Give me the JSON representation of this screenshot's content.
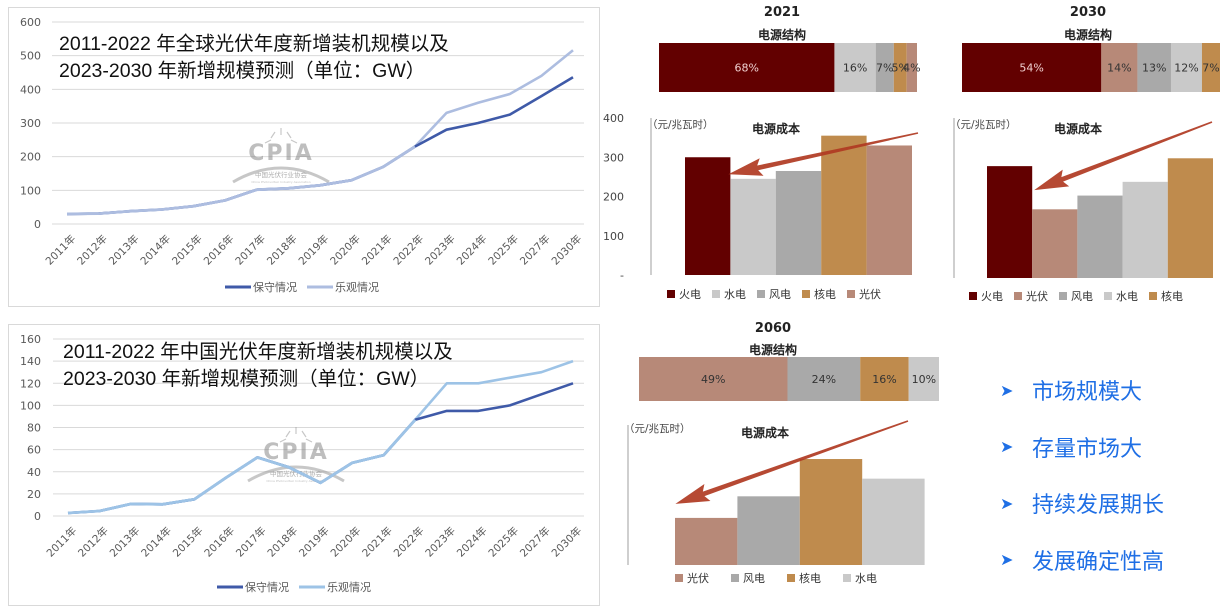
{
  "chart_data": [
    {
      "id": "global",
      "type": "line",
      "title": "2011-2022 年全球光伏年度新增装机规模以及\n2023-2030 年新增规模预测（单位：GW）",
      "title_lines": [
        "2011-2022 年全球光伏年度新增装机规模以及",
        "2023-2030 年新增规模预测（单位：GW）"
      ],
      "xlabel": "",
      "ylabel": "",
      "categories": [
        "2011年",
        "2012年",
        "2013年",
        "2014年",
        "2015年",
        "2016年",
        "2017年",
        "2018年",
        "2019年",
        "2020年",
        "2021年",
        "2022年",
        "2023年",
        "2024年",
        "2025年",
        "2027年",
        "2030年"
      ],
      "ylim": [
        0,
        600
      ],
      "yticks": [
        0,
        100,
        200,
        300,
        400,
        500,
        600
      ],
      "grid": true,
      "legend_position": "bottom",
      "series": [
        {
          "name": "保守情况",
          "color": "#3f5aa8",
          "values": [
            30,
            31,
            38,
            43,
            53,
            70,
            102,
            106,
            115,
            130,
            170,
            230,
            280,
            300,
            325,
            380,
            436
          ]
        },
        {
          "name": "乐观情况",
          "color": "#adbde0",
          "values": [
            30,
            31,
            38,
            43,
            53,
            70,
            102,
            106,
            115,
            130,
            170,
            230,
            330,
            360,
            386,
            440,
            516
          ]
        }
      ],
      "watermark": {
        "logo": "CPIA",
        "cn": "中国光伏行业协会",
        "en": "China Photovoltaic Industry Association"
      }
    },
    {
      "id": "china",
      "type": "line",
      "title_lines": [
        "2011-2022 年中国光伏年度新增装机规模以及",
        "2023-2030 年新增规模预测（单位：GW）"
      ],
      "xlabel": "",
      "ylabel": "",
      "categories": [
        "2011年",
        "2012年",
        "2013年",
        "2014年",
        "2015年",
        "2016年",
        "2017年",
        "2018年",
        "2019年",
        "2020年",
        "2021年",
        "2022年",
        "2023年",
        "2024年",
        "2025年",
        "2027年",
        "2030年"
      ],
      "ylim": [
        0,
        160
      ],
      "yticks": [
        0,
        20,
        40,
        60,
        80,
        100,
        120,
        140,
        160
      ],
      "grid": true,
      "legend_position": "bottom",
      "series": [
        {
          "name": "保守情况",
          "color": "#3f5aa8",
          "values": [
            2.7,
            4.5,
            10.9,
            10.6,
            15.1,
            34.5,
            53,
            44,
            30,
            48,
            55,
            87,
            95,
            95,
            100,
            110,
            120
          ]
        },
        {
          "name": "乐观情况",
          "color": "#9dc3e6",
          "values": [
            2.7,
            4.5,
            10.9,
            10.6,
            15.1,
            34.5,
            53,
            44,
            30,
            48,
            55,
            87,
            120,
            120,
            125,
            130,
            140
          ]
        }
      ],
      "watermark": {
        "logo": "CPIA",
        "cn": "中国光伏行业协会",
        "en": "China Photovoltaic Industry Association"
      }
    },
    {
      "id": "y2021",
      "year": "2021",
      "structure": {
        "type": "stacked-bar",
        "title": "电源结构",
        "segments": [
          {
            "name": "火电",
            "value": 68,
            "label": "68%",
            "color": "#620000",
            "text_color": "#f0d0d0"
          },
          {
            "name": "水电",
            "value": 16,
            "label": "16%",
            "color": "#c9c9c9",
            "text_color": "#333333"
          },
          {
            "name": "风电",
            "value": 7,
            "label": "7%",
            "color": "#a9a9a9",
            "text_color": "#333333"
          },
          {
            "name": "核电",
            "value": 5,
            "label": "5%",
            "color": "#bf8b4d",
            "text_color": "#333333"
          },
          {
            "name": "光伏",
            "value": 4,
            "label": "4%",
            "color": "#b78978",
            "text_color": "#333333"
          }
        ]
      },
      "cost": {
        "type": "bar",
        "title": "电源成本",
        "unit": "（元/兆瓦时）",
        "ylim": [
          0,
          400
        ],
        "yticks": [
          "-",
          "100",
          "200",
          "300",
          "400"
        ],
        "categories": [
          "火电",
          "水电",
          "风电",
          "核电",
          "光伏"
        ],
        "values": [
          300,
          245,
          265,
          355,
          330
        ],
        "colors": [
          "#620000",
          "#c9c9c9",
          "#a9a9a9",
          "#bf8b4d",
          "#b78978"
        ],
        "arrow_to": "火电"
      }
    },
    {
      "id": "y2030",
      "year": "2030",
      "structure": {
        "type": "stacked-bar",
        "title": "电源结构",
        "segments": [
          {
            "name": "火电",
            "value": 54,
            "label": "54%",
            "color": "#620000",
            "text_color": "#f0d0d0"
          },
          {
            "name": "光伏",
            "value": 14,
            "label": "14%",
            "color": "#b78978",
            "text_color": "#333333"
          },
          {
            "name": "风电",
            "value": 13,
            "label": "13%",
            "color": "#a9a9a9",
            "text_color": "#333333"
          },
          {
            "name": "水电",
            "value": 12,
            "label": "12%",
            "color": "#c9c9c9",
            "text_color": "#333333"
          },
          {
            "name": "核电",
            "value": 7,
            "label": "7%",
            "color": "#bf8b4d",
            "text_color": "#333333"
          }
        ]
      },
      "cost": {
        "type": "bar",
        "title": "电源成本",
        "unit": "（元/兆瓦时）",
        "ylim": [
          0,
          400
        ],
        "categories": [
          "火电",
          "光伏",
          "风电",
          "水电",
          "核电"
        ],
        "values": [
          285,
          175,
          210,
          245,
          305
        ],
        "colors": [
          "#620000",
          "#b78978",
          "#a9a9a9",
          "#c9c9c9",
          "#bf8b4d"
        ],
        "arrow_to": "火电"
      }
    },
    {
      "id": "y2060",
      "year": "2060",
      "structure": {
        "type": "stacked-bar",
        "title": "电源结构",
        "segments": [
          {
            "name": "光伏",
            "value": 49,
            "label": "49%",
            "color": "#b78978",
            "text_color": "#333333"
          },
          {
            "name": "风电",
            "value": 24,
            "label": "24%",
            "color": "#a9a9a9",
            "text_color": "#333333"
          },
          {
            "name": "核电",
            "value": 16,
            "label": "16%",
            "color": "#bf8b4d",
            "text_color": "#333333"
          },
          {
            "name": "水电",
            "value": 10,
            "label": "10%",
            "color": "#c9c9c9",
            "text_color": "#333333"
          }
        ]
      },
      "cost": {
        "type": "bar",
        "title": "电源成本",
        "unit": "（元/兆瓦时）",
        "ylim": [
          0,
          400
        ],
        "categories": [
          "光伏",
          "风电",
          "核电",
          "水电"
        ],
        "values": [
          120,
          175,
          270,
          220
        ],
        "colors": [
          "#b78978",
          "#a9a9a9",
          "#bf8b4d",
          "#c9c9c9"
        ],
        "arrow_to": "光伏"
      }
    }
  ],
  "bullets": {
    "icon": "arrowhead-bullet-icon",
    "color": "#1f6fe5",
    "items": [
      "市场规模大",
      "存量市场大",
      "持续发展期长",
      "发展确定性高"
    ]
  }
}
